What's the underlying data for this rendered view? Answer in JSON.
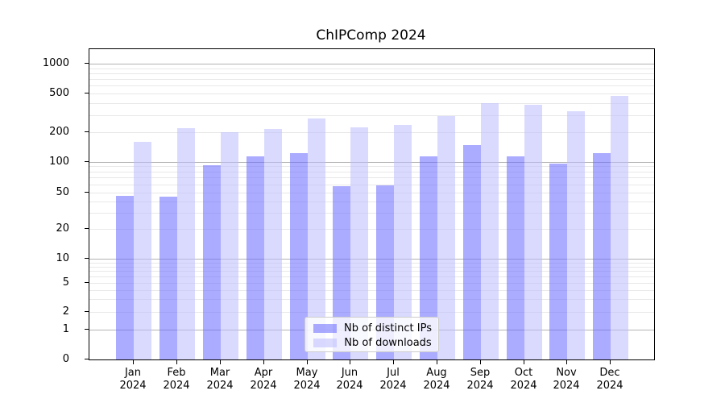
{
  "chart_data": {
    "type": "bar",
    "title": "ChIPComp 2024",
    "categories": [
      "Jan 2024",
      "Feb 2024",
      "Mar 2024",
      "Apr 2024",
      "May 2024",
      "Jun 2024",
      "Jul 2024",
      "Aug 2024",
      "Sep 2024",
      "Oct 2024",
      "Nov 2024",
      "Dec 2024"
    ],
    "series": [
      {
        "name": "Nb of distinct IPs",
        "color": "#6666ff",
        "alpha": 0.55,
        "values": [
          46,
          45,
          92,
          113,
          123,
          57,
          58,
          114,
          147,
          114,
          95,
          122
        ]
      },
      {
        "name": "Nb of downloads",
        "color": "#bbbbff",
        "alpha": 0.55,
        "values": [
          160,
          221,
          202,
          215,
          280,
          226,
          237,
          296,
          400,
          381,
          330,
          472
        ]
      }
    ],
    "xlabel": "",
    "ylabel": "",
    "yticks": [
      0,
      1,
      2,
      5,
      10,
      20,
      50,
      100,
      200,
      500,
      1000
    ],
    "ylim": [
      0,
      1000
    ],
    "yscale": "log-like",
    "grid": true,
    "legend_position": "bottom-center",
    "legend": [
      "Nb of distinct IPs",
      "Nb of downloads"
    ]
  },
  "colors": {
    "major_grid": "#b3b3b3",
    "minor_grid": "#e8e8e8",
    "axis": "#000000",
    "text": "#000000"
  }
}
